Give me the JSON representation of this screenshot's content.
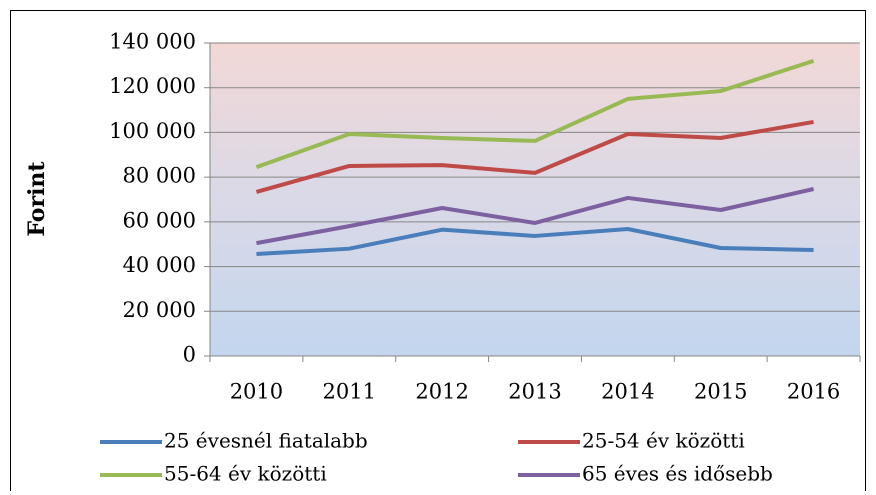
{
  "chart_data": {
    "type": "line",
    "y_label": "Forint",
    "categories": [
      "2010",
      "2011",
      "2012",
      "2013",
      "2014",
      "2015",
      "2016"
    ],
    "series": [
      {
        "name": "25 évesnél fiatalabb",
        "color": "#4a7ebb",
        "values": [
          45600,
          48000,
          56500,
          53700,
          56800,
          48300,
          47400
        ]
      },
      {
        "name": "25-54 év közötti",
        "color": "#be4b48",
        "values": [
          73400,
          85000,
          85400,
          81900,
          99300,
          97500,
          104700
        ]
      },
      {
        "name": "55-64 év közötti",
        "color": "#98b954",
        "values": [
          84500,
          99300,
          97500,
          96200,
          115000,
          118500,
          132000
        ]
      },
      {
        "name": "65 éves és idősebb",
        "color": "#7d60a0",
        "values": [
          50500,
          58100,
          66200,
          59500,
          70700,
          65300,
          74700
        ]
      }
    ],
    "ylim": [
      0,
      140000
    ],
    "yticks": [
      {
        "value": 0,
        "label": "0"
      },
      {
        "value": 20000,
        "label": "20 000"
      },
      {
        "value": 40000,
        "label": "40 000"
      },
      {
        "value": 60000,
        "label": "60 000"
      },
      {
        "value": 80000,
        "label": "80 000"
      },
      {
        "value": 100000,
        "label": "100 000"
      },
      {
        "value": 120000,
        "label": "120 000"
      },
      {
        "value": 140000,
        "label": "140 000"
      }
    ],
    "grid": true
  }
}
